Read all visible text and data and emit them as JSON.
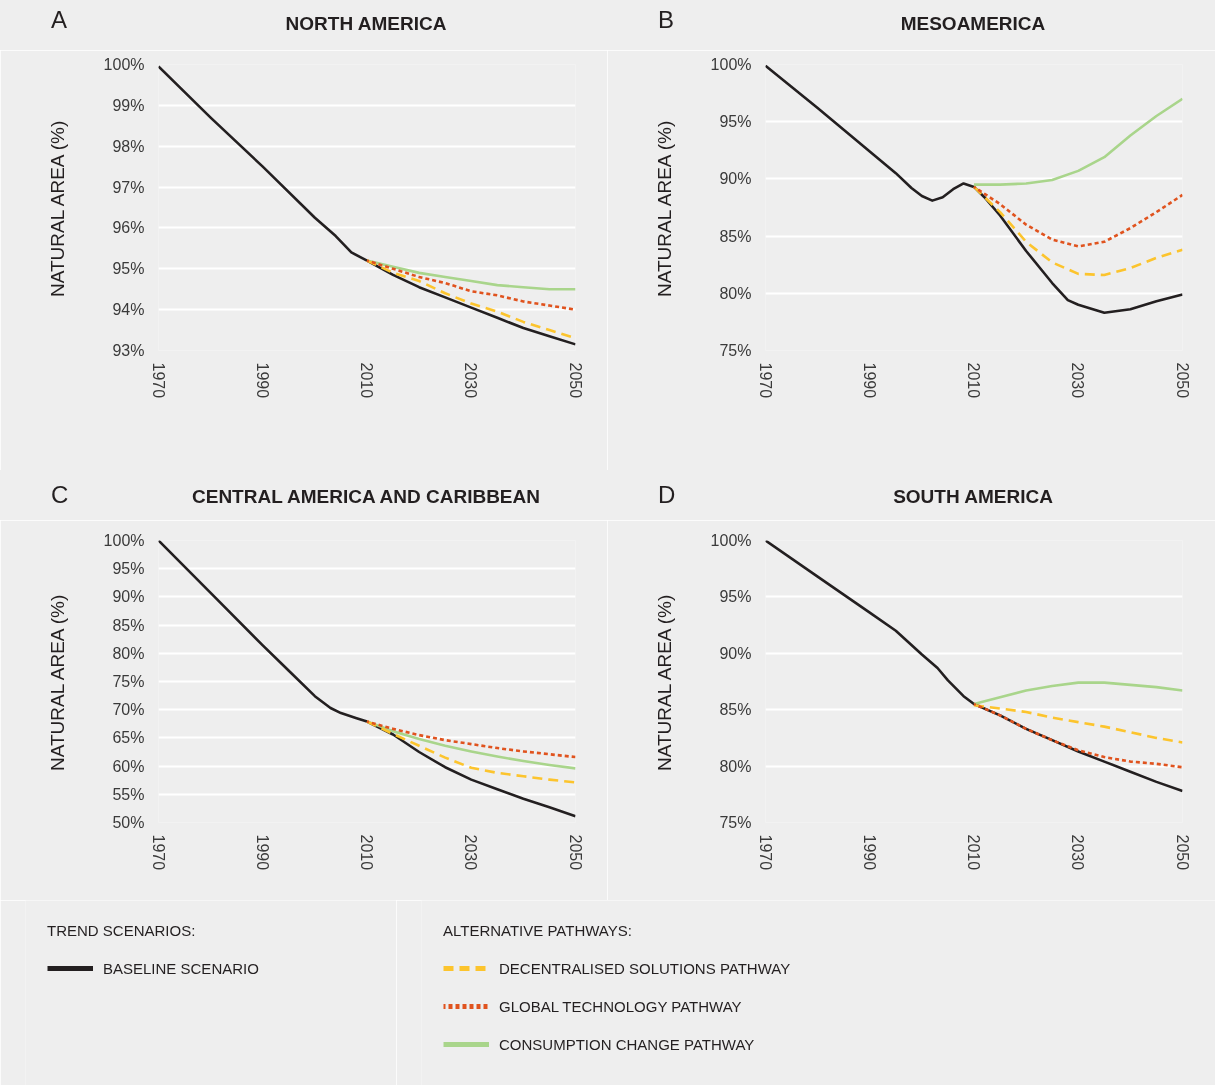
{
  "chart_data": [
    {
      "type": "line",
      "title": "NORTH AMERICA",
      "ylabel": "NATURAL AREA (%)",
      "annotations": [
        "A"
      ],
      "xlim": [
        1970,
        2050
      ],
      "ylim": [
        93,
        100
      ],
      "xticks": [
        1970,
        1990,
        2010,
        2030,
        2050
      ],
      "yticks": [
        {
          "value": 93,
          "label": "93%"
        },
        {
          "value": 94,
          "label": "94%"
        },
        {
          "value": 95,
          "label": "95%"
        },
        {
          "value": 96,
          "label": "96%"
        },
        {
          "value": 97,
          "label": "97%"
        },
        {
          "value": 98,
          "label": "98%"
        },
        {
          "value": 99,
          "label": "99%"
        },
        {
          "value": 100,
          "label": "100%"
        }
      ],
      "grid": "y",
      "legend": false,
      "series": [
        {
          "color": "#231f20",
          "line_style": "solid",
          "x": [
            1970,
            1980,
            1990,
            2000,
            2004,
            2007,
            2010,
            2015,
            2020,
            2025,
            2030,
            2035,
            2040,
            2045,
            2050
          ],
          "values": [
            99.95,
            98.7,
            97.5,
            96.25,
            95.8,
            95.4,
            95.2,
            94.85,
            94.55,
            94.3,
            94.05,
            93.8,
            93.55,
            93.35,
            93.15
          ]
        },
        {
          "color": "#fcc42d",
          "line_style": "dashed",
          "x": [
            2010,
            2015,
            2020,
            2025,
            2030,
            2035,
            2040,
            2045,
            2050
          ],
          "values": [
            95.2,
            94.9,
            94.7,
            94.4,
            94.15,
            93.95,
            93.7,
            93.5,
            93.3
          ]
        },
        {
          "color": "#e0531e",
          "line_style": "dotted",
          "x": [
            2010,
            2015,
            2020,
            2025,
            2030,
            2035,
            2040,
            2045,
            2050
          ],
          "values": [
            95.2,
            95.0,
            94.8,
            94.65,
            94.45,
            94.35,
            94.2,
            94.1,
            94.0
          ]
        },
        {
          "color": "#a9d58b",
          "line_style": "solid",
          "x": [
            2010,
            2015,
            2020,
            2025,
            2030,
            2035,
            2040,
            2045,
            2050
          ],
          "values": [
            95.2,
            95.05,
            94.9,
            94.8,
            94.7,
            94.6,
            94.55,
            94.5,
            94.5
          ]
        }
      ]
    },
    {
      "type": "line",
      "title": "MESOAMERICA",
      "ylabel": "NATURAL AREA (%)",
      "annotations": [
        "B"
      ],
      "xlim": [
        1970,
        2050
      ],
      "ylim": [
        75,
        100
      ],
      "xticks": [
        1970,
        1990,
        2010,
        2030,
        2050
      ],
      "yticks": [
        {
          "value": 75,
          "label": "75%"
        },
        {
          "value": 80,
          "label": "80%"
        },
        {
          "value": 85,
          "label": "85%"
        },
        {
          "value": 90,
          "label": "90%"
        },
        {
          "value": 95,
          "label": "95%"
        },
        {
          "value": 100,
          "label": "100%"
        }
      ],
      "grid": "y",
      "legend": false,
      "series": [
        {
          "color": "#231f20",
          "line_style": "solid",
          "x": [
            1970,
            1980,
            1990,
            1995,
            1998,
            2000,
            2002,
            2004,
            2006,
            2008,
            2010,
            2012,
            2015,
            2020,
            2025,
            2028,
            2030,
            2035,
            2040,
            2045,
            2050
          ],
          "values": [
            99.9,
            96.2,
            92.4,
            90.5,
            89.2,
            88.5,
            88.1,
            88.4,
            89.1,
            89.6,
            89.3,
            88.4,
            86.8,
            83.7,
            80.9,
            79.4,
            79.0,
            78.3,
            78.6,
            79.3,
            79.9
          ]
        },
        {
          "color": "#fcc42d",
          "line_style": "dashed",
          "x": [
            2010,
            2015,
            2020,
            2025,
            2030,
            2035,
            2040,
            2045,
            2050
          ],
          "values": [
            89.3,
            87.1,
            84.5,
            82.7,
            81.7,
            81.6,
            82.2,
            83.1,
            83.8
          ]
        },
        {
          "color": "#e0531e",
          "line_style": "dotted",
          "x": [
            2010,
            2015,
            2020,
            2025,
            2030,
            2035,
            2040,
            2045,
            2050
          ],
          "values": [
            89.3,
            87.8,
            86.0,
            84.7,
            84.1,
            84.5,
            85.7,
            87.1,
            88.6
          ]
        },
        {
          "color": "#a9d58b",
          "line_style": "solid",
          "x": [
            2010,
            2015,
            2020,
            2025,
            2030,
            2035,
            2040,
            2045,
            2050
          ],
          "values": [
            89.5,
            89.5,
            89.6,
            89.9,
            90.7,
            91.9,
            93.8,
            95.5,
            97.0
          ]
        }
      ]
    },
    {
      "type": "line",
      "title": "CENTRAL AMERICA AND CARIBBEAN",
      "ylabel": "NATURAL AREA (%)",
      "annotations": [
        "C"
      ],
      "xlim": [
        1970,
        2050
      ],
      "ylim": [
        50,
        100
      ],
      "xticks": [
        1970,
        1990,
        2010,
        2030,
        2050
      ],
      "yticks": [
        {
          "value": 50,
          "label": "50%"
        },
        {
          "value": 55,
          "label": "55%"
        },
        {
          "value": 60,
          "label": "60%"
        },
        {
          "value": 65,
          "label": "65%"
        },
        {
          "value": 70,
          "label": "70%"
        },
        {
          "value": 75,
          "label": "75%"
        },
        {
          "value": 80,
          "label": "80%"
        },
        {
          "value": 85,
          "label": "85%"
        },
        {
          "value": 90,
          "label": "90%"
        },
        {
          "value": 95,
          "label": "95%"
        },
        {
          "value": 100,
          "label": "100%"
        }
      ],
      "grid": "y",
      "legend": false,
      "series": [
        {
          "color": "#231f20",
          "line_style": "solid",
          "x": [
            1970,
            1980,
            1990,
            1995,
            2000,
            2003,
            2005,
            2008,
            2010,
            2015,
            2020,
            2025,
            2030,
            2035,
            2040,
            2045,
            2050
          ],
          "values": [
            100.0,
            90.7,
            81.4,
            76.9,
            72.4,
            70.3,
            69.4,
            68.5,
            67.9,
            65.6,
            62.5,
            59.8,
            57.6,
            55.9,
            54.2,
            52.7,
            51.1
          ]
        },
        {
          "color": "#fcc42d",
          "line_style": "dashed",
          "x": [
            2010,
            2015,
            2020,
            2025,
            2030,
            2035,
            2040,
            2045,
            2050
          ],
          "values": [
            67.9,
            65.7,
            63.6,
            61.5,
            59.7,
            58.8,
            58.2,
            57.6,
            57.1
          ]
        },
        {
          "color": "#e0531e",
          "line_style": "dotted",
          "x": [
            2010,
            2015,
            2020,
            2025,
            2030,
            2035,
            2040,
            2045,
            2050
          ],
          "values": [
            67.9,
            66.6,
            65.5,
            64.6,
            63.9,
            63.2,
            62.6,
            62.1,
            61.6
          ]
        },
        {
          "color": "#a9d58b",
          "line_style": "solid",
          "x": [
            2010,
            2015,
            2020,
            2025,
            2030,
            2035,
            2040,
            2045,
            2050
          ],
          "values": [
            67.9,
            66.2,
            64.8,
            63.6,
            62.6,
            61.7,
            60.9,
            60.2,
            59.6
          ]
        }
      ]
    },
    {
      "type": "line",
      "title": "SOUTH AMERICA",
      "ylabel": "NATURAL AREA (%)",
      "annotations": [
        "D",
        "ALTERNATIVE PATHWAYS:"
      ],
      "xlim": [
        1970,
        2050
      ],
      "ylim": [
        75,
        100
      ],
      "xticks": [
        1970,
        1990,
        2010,
        2030,
        2050
      ],
      "yticks": [
        {
          "value": 75,
          "label": "75%"
        },
        {
          "value": 80,
          "label": "80%"
        },
        {
          "value": 85,
          "label": "85%"
        },
        {
          "value": 90,
          "label": "90%"
        },
        {
          "value": 95,
          "label": "95%"
        },
        {
          "value": 100,
          "label": "100%"
        }
      ],
      "grid": "y",
      "legend": "bottom",
      "legend_title": "TREND SCENARIOS:",
      "series": [
        {
          "name": "BASELINE SCENARIO",
          "color": "#231f20",
          "line_style": "solid",
          "x": [
            1970,
            1980,
            1990,
            1995,
            2000,
            2003,
            2005,
            2008,
            2010,
            2015,
            2020,
            2025,
            2030,
            2035,
            2040,
            2045,
            2050
          ],
          "values": [
            100.0,
            96.8,
            93.6,
            92.0,
            89.9,
            88.7,
            87.6,
            86.2,
            85.5,
            84.5,
            83.3,
            82.3,
            81.3,
            80.4,
            79.5,
            78.6,
            77.8
          ]
        },
        {
          "name": "DECENTRALISED SOLUTIONS PATHWAY",
          "color": "#fcc42d",
          "line_style": "dashed",
          "x": [
            2010,
            2015,
            2020,
            2025,
            2030,
            2035,
            2040,
            2045,
            2050
          ],
          "values": [
            85.4,
            85.1,
            84.8,
            84.3,
            83.9,
            83.5,
            83.0,
            82.5,
            82.1
          ]
        },
        {
          "name": "GLOBAL TECHNOLOGY PATHWAY",
          "color": "#e0531e",
          "line_style": "dotted",
          "x": [
            2010,
            2015,
            2020,
            2025,
            2030,
            2035,
            2040,
            2045,
            2050
          ],
          "values": [
            85.5,
            84.5,
            83.3,
            82.3,
            81.4,
            80.8,
            80.4,
            80.2,
            79.9
          ]
        },
        {
          "name": "CONSUMPTION CHANGE PATHWAY",
          "color": "#a9d58b",
          "line_style": "solid",
          "x": [
            2010,
            2015,
            2020,
            2025,
            2030,
            2035,
            2040,
            2045,
            2050
          ],
          "values": [
            85.5,
            86.1,
            86.7,
            87.1,
            87.4,
            87.4,
            87.2,
            87.0,
            86.7
          ]
        }
      ]
    }
  ]
}
